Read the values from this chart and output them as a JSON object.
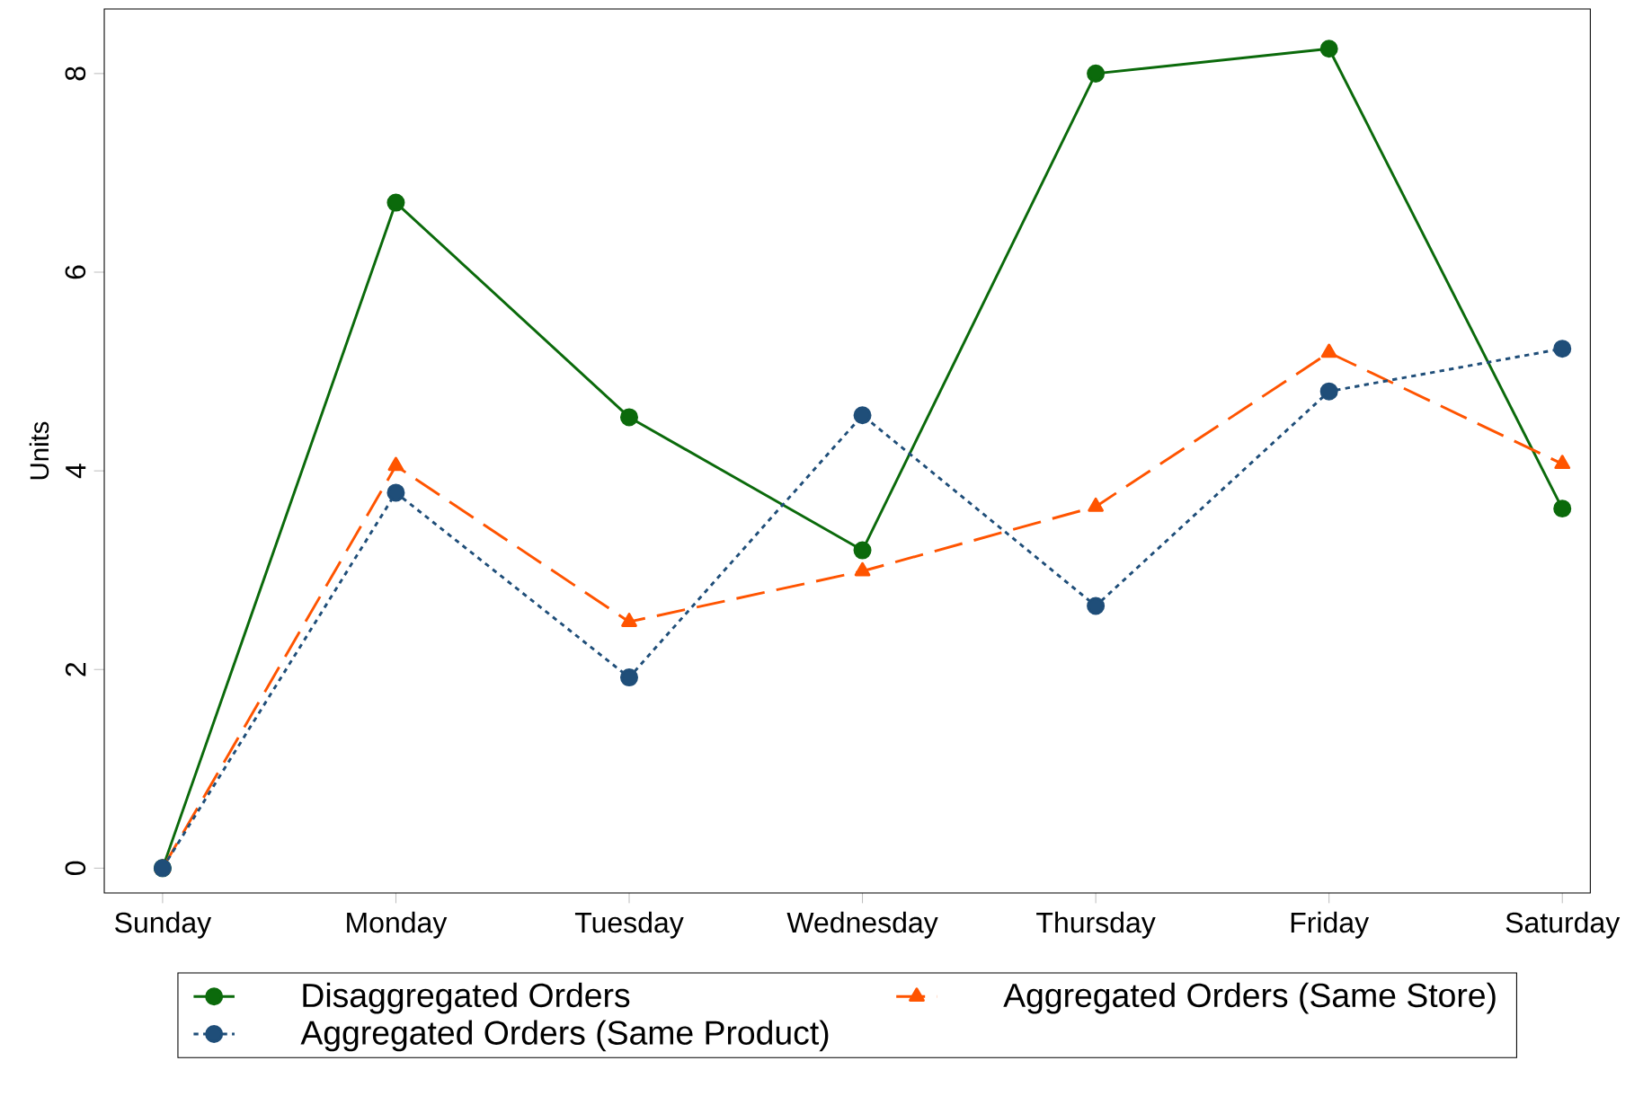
{
  "chart_data": {
    "type": "line",
    "ylabel": "Units",
    "categories": [
      "Sunday",
      "Monday",
      "Tuesday",
      "Wednesday",
      "Thursday",
      "Friday",
      "Saturday"
    ],
    "ylim": [
      -0.25,
      8.65
    ],
    "yticks": [
      0,
      2,
      4,
      6,
      8
    ],
    "legend": "bottom",
    "grid": false,
    "series": [
      {
        "name": "Disaggregated Orders",
        "color": "#0b6a0b",
        "marker": "circle",
        "line_style": "solid",
        "values": [
          0,
          6.7,
          4.54,
          3.2,
          8.0,
          8.25,
          3.62
        ]
      },
      {
        "name": "Aggregated Orders (Same Store)",
        "color": "#ff5400",
        "marker": "triangle",
        "line_style": "dashed",
        "values": [
          0,
          4.05,
          2.48,
          2.99,
          3.64,
          5.19,
          4.07
        ]
      },
      {
        "name": "Aggregated Orders (Same Product)",
        "color": "#1f4e79",
        "marker": "circle",
        "line_style": "dotted",
        "values": [
          0,
          3.78,
          1.92,
          4.56,
          2.64,
          4.8,
          5.23
        ]
      }
    ]
  }
}
